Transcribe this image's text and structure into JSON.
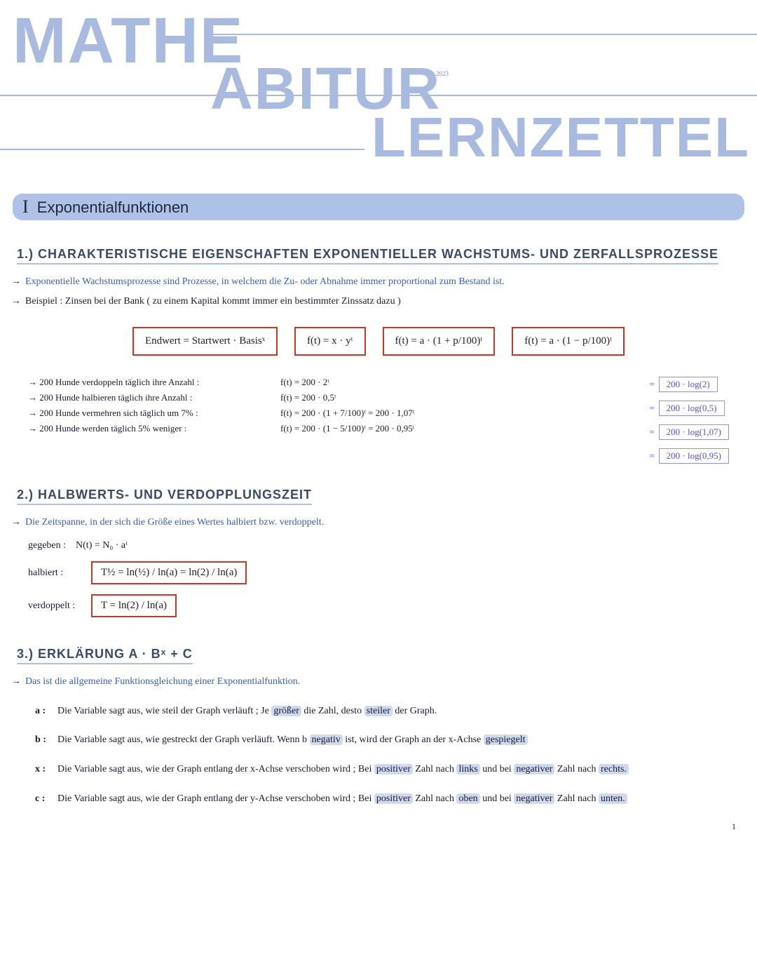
{
  "colors": {
    "header_text": "#a8bae0",
    "chapter_bg": "#aec1e6",
    "red_border": "#c23a2e",
    "blue_ink": "#3a5fa8",
    "purple_ink": "#5a4fc2",
    "highlight_bg": "#cfd9ef",
    "background": "#ffffff"
  },
  "header": {
    "word1": "MATHE",
    "word2": "ABITUR",
    "word3": "LERNZETTEL",
    "year": "2023"
  },
  "chapter": {
    "roman": "I",
    "title": "Exponentialfunktionen"
  },
  "sec1": {
    "title": "1.) Charakteristische Eigenschaften exponentieller Wachstums- und Zerfallsprozesse",
    "bullet1": "Exponentielle Wachstumsprozesse sind Prozesse, in welchem die Zu- oder Abnahme immer proportional zum Bestand ist.",
    "bullet2": "Beispiel : Zinsen bei der Bank ( zu einem Kapital kommt immer ein bestimmter Zinssatz dazu )",
    "f1": "Endwert = Startwert · Basisˣ",
    "f2": "f(t) = x · yᵗ",
    "f3": "f(t) = a · (1 + p/100)ᵗ",
    "f4": "f(t) = a · (1 − p/100)ᵗ",
    "ex1_l": "200 Hunde verdoppeln täglich ihre Anzahl :",
    "ex1_r": "f(t) = 200 · 2ᵗ",
    "ex2_l": "200 Hunde halbieren täglich ihre Anzahl :",
    "ex2_r": "f(t) = 200 · 0,5ᵗ",
    "ex3_l": "200 Hunde vermehren sich täglich um 7% :",
    "ex3_r": "f(t) = 200 · (1 + 7/100)ᵗ  =  200 · 1,07ᵗ",
    "ex4_l": "200 Hunde werden täglich 5% weniger :",
    "ex4_r": "f(t) = 200 · (1 − 5/100)ᵗ  =  200 · 0,95ᵗ",
    "calc1": "200 · log(2)",
    "calc2": "200 · log(0,5)",
    "calc3": "200 · log(1,07)",
    "calc4": "200 · log(0,95)"
  },
  "sec2": {
    "title": "2.) Halbwerts- und Verdopplungszeit",
    "bullet": "Die Zeitspanne, in der sich die Größe eines Wertes halbiert bzw. verdoppelt.",
    "given_lbl": "gegeben :",
    "given_eq": "N(t) = N₀ · aᵗ",
    "halb_lbl": "halbiert :",
    "halb_eq": "T½ = ln(½) / ln(a)  =  ln(2) / ln(a)",
    "verd_lbl": "verdoppelt :",
    "verd_eq": "T = ln(2) / ln(a)"
  },
  "sec3": {
    "title": "3.) Erklärung a · bˣ + c",
    "bullet": "Das ist die allgemeine Funktionsgleichung einer Exponentialfunktion.",
    "a_lbl": "a :",
    "a_txt_1": "Die Variable sagt aus, wie steil der Graph verläuft ; Je ",
    "a_hl1": "größer",
    "a_txt_2": " die Zahl, desto ",
    "a_hl2": "steiler",
    "a_txt_3": " der Graph.",
    "b_lbl": "b :",
    "b_txt_1": "Die Variable sagt aus, wie gestreckt der Graph verläuft. Wenn b ",
    "b_hl1": "negativ",
    "b_txt_2": " ist, wird der Graph an der x-Achse ",
    "b_hl2": "gespiegelt",
    "x_lbl": "x :",
    "x_txt_1": "Die Variable sagt aus, wie der Graph entlang der x-Achse verschoben wird ; Bei ",
    "x_hl1": "positiver",
    "x_txt_2": " Zahl nach ",
    "x_hl2": "links",
    "x_txt_3": " und bei ",
    "x_hl3": "negativer",
    "x_txt_4": " Zahl nach ",
    "x_hl4": "rechts.",
    "c_lbl": "c :",
    "c_txt_1": "Die Variable sagt aus, wie der Graph entlang der y-Achse verschoben wird ; Bei ",
    "c_hl1": "positiver",
    "c_txt_2": " Zahl nach ",
    "c_hl2": "oben",
    "c_txt_3": " und bei ",
    "c_hl3": "negativer",
    "c_txt_4": " Zahl nach ",
    "c_hl4": "unten."
  },
  "page_number": "1"
}
